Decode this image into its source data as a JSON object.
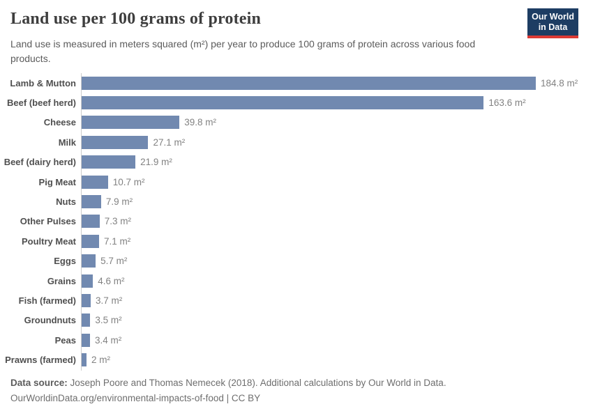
{
  "header": {
    "title": "Land use per 100 grams of protein",
    "subtitle": "Land use is measured in meters squared (m²) per year to produce 100 grams of protein across various food products.",
    "logo": {
      "line1": "Our World",
      "line2": "in Data"
    }
  },
  "colors": {
    "bar": "#7189b0",
    "logo_background": "#1d3d63",
    "logo_stripe": "#dc3a34",
    "axis_line": "#cccccc"
  },
  "chart_data": {
    "type": "bar",
    "orientation": "horizontal",
    "title": "Land use per 100 grams of protein",
    "unit": "m² per year per 100g protein",
    "xlim": [
      0,
      184.8
    ],
    "grid": false,
    "legend": "none",
    "categories": [
      "Lamb & Mutton",
      "Beef (beef herd)",
      "Cheese",
      "Milk",
      "Beef (dairy herd)",
      "Pig Meat",
      "Nuts",
      "Other Pulses",
      "Poultry Meat",
      "Eggs",
      "Grains",
      "Fish (farmed)",
      "Groundnuts",
      "Peas",
      "Prawns (farmed)"
    ],
    "values": [
      184.8,
      163.6,
      39.8,
      27.1,
      21.9,
      10.7,
      7.9,
      7.3,
      7.1,
      5.7,
      4.6,
      3.7,
      3.5,
      3.4,
      2
    ],
    "value_labels": [
      "184.8 m²",
      "163.6 m²",
      "39.8 m²",
      "27.1 m²",
      "21.9 m²",
      "10.7 m²",
      "7.9 m²",
      "7.3 m²",
      "7.1 m²",
      "5.7 m²",
      "4.6 m²",
      "3.7 m²",
      "3.5 m²",
      "3.4 m²",
      "2 m²"
    ]
  },
  "footer": {
    "data_source_label": "Data source:",
    "data_source_text": " Joseph Poore and Thomas Nemecek (2018). Additional calculations by Our World in Data.",
    "license_line": "OurWorldinData.org/environmental-impacts-of-food | CC BY"
  }
}
